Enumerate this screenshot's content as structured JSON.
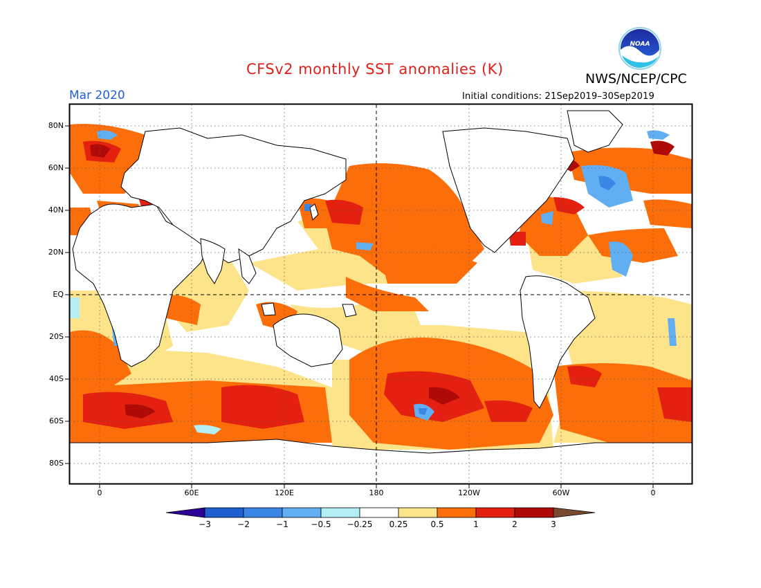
{
  "title": "CFSv2 monthly SST anomalies (K)",
  "agency": "NWS/NCEP/CPC",
  "logo_text": "NOAA",
  "month": "Mar 2020",
  "initial_conditions": "Initial conditions: 21Sep2019–30Sep2019",
  "lat_labels": [
    "80N",
    "60N",
    "40N",
    "20N",
    "EQ",
    "20S",
    "40S",
    "60S",
    "80S"
  ],
  "lon_labels": [
    "0",
    "60E",
    "120E",
    "180",
    "120W",
    "60W",
    "0"
  ],
  "colorbar": {
    "labels": [
      "−3",
      "−2",
      "−1",
      "−0.5",
      "−0.25",
      "0.25",
      "0.5",
      "1",
      "2",
      "3"
    ],
    "colors": [
      "#2a0096",
      "#1f5fd0",
      "#3a86e4",
      "#62aef2",
      "#b2eef4",
      "#ffffff",
      "#fde48a",
      "#fc6e0a",
      "#e42010",
      "#b00a08",
      "#7a4a30"
    ]
  },
  "colors": {
    "title": "#e0201a",
    "month": "#1f5fd8",
    "land": "#ffffff",
    "near_zero": "#ffffff",
    "warm_weak": "#fde48a",
    "warm": "#fc6e0a",
    "warm_strong": "#e42010",
    "warm_extreme": "#b00a08",
    "cool": "#3a86e4",
    "cool_weak": "#b2eef4"
  }
}
